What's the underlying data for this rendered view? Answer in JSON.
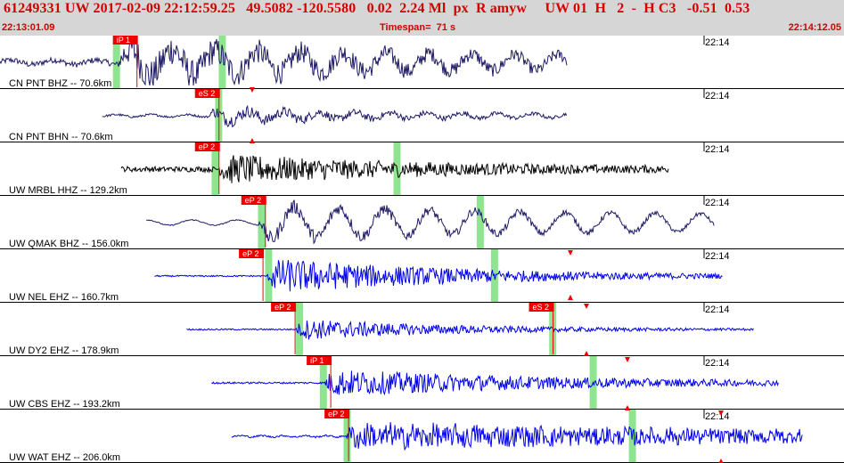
{
  "header": {
    "title": "61249331 UW 2017-02-09 22:12:59.25   49.5082 -120.5580   0.02  2.24 Ml  px  R amyw     UW 01  H   2  -  H C3   -0.51  0.53",
    "start_time": "22:13:01.09",
    "timespan": "Timespan=  71 s",
    "end_time": "22:14:12.05"
  },
  "colors": {
    "header_bg": "#d6d6d6",
    "header_text": "#d40000",
    "pick_box": "#ee0000",
    "window_band": "#8fe58f",
    "trace_dark": "#1e1a66",
    "trace_black": "#000000",
    "trace_blue": "#0000ee"
  },
  "channels": [
    {
      "label": "CN PNT BHZ -- 70.6km",
      "time_mark": "22:14",
      "color": "#1e1a66",
      "picks": [
        {
          "label": "iP 1",
          "t": 9.5
        }
      ],
      "bands": [
        9.5,
        18.4
      ],
      "trace": {
        "start": 0,
        "end": 47.7,
        "onset": 10.0,
        "amp": 1.0,
        "noise": 0.16,
        "decay": 0.045,
        "wave": 0.5,
        "period": 3.6,
        "hf": 0.9
      }
    },
    {
      "label": "CN PNT BHN -- 70.6km",
      "time_mark": "22:14",
      "color": "#1e1a66",
      "picks": [
        {
          "label": "eS 2",
          "t": 16.4
        }
      ],
      "bands": [
        18.1
      ],
      "trace": {
        "start": 8.6,
        "end": 47.7,
        "onset": 17.6,
        "amp": 0.85,
        "noise": 0.06,
        "decay": 0.06,
        "wave": 0.25,
        "period": 3.0,
        "hf": 0.45
      }
    },
    {
      "label": "UW MRBL HHZ -- 129.2km",
      "time_mark": "22:14",
      "color": "#000000",
      "picks": [
        {
          "label": "eP 2",
          "t": 16.4
        }
      ],
      "bands": [
        17.8,
        33.1
      ],
      "trace": {
        "start": 10.2,
        "end": 56.3,
        "onset": 18.4,
        "amp": 0.85,
        "noise": 0.15,
        "decay": 0.06,
        "wave": 0.05,
        "period": 2.0,
        "hf": 0.9
      }
    },
    {
      "label": "UW QMAK BHZ -- 156.0km",
      "time_mark": "22:14",
      "color": "#1e1a66",
      "picks": [
        {
          "label": "eP 2",
          "t": 20.3
        }
      ],
      "bands": [
        21.7,
        40.1
      ],
      "trace": {
        "start": 12.3,
        "end": 60.1,
        "onset": 21.8,
        "amp": 0.95,
        "noise": 0.03,
        "decay": 0.04,
        "wave": 0.6,
        "period": 3.8,
        "hf": 0.45
      }
    },
    {
      "label": "UW NEL EHZ -- 160.7km",
      "time_mark": "22:14",
      "color": "#0000ee",
      "picks": [
        {
          "label": "eP 2",
          "t": 20.1
        }
      ],
      "bands": [
        22.3,
        41.3
      ],
      "trace": {
        "start": 13.0,
        "end": 60.8,
        "onset": 22.5,
        "amp": 1.0,
        "noise": 0.04,
        "decay": 0.06,
        "wave": 0,
        "period": 1.0,
        "hf": 1.0
      }
    },
    {
      "label": "UW DY2 EHZ -- 178.9km",
      "time_mark": "22:14",
      "color": "#0000ee",
      "picks": [
        {
          "label": "eP 2",
          "t": 22.8
        },
        {
          "label": "eS 2",
          "t": 44.5
        }
      ],
      "bands": [
        24.9,
        46.2
      ],
      "trace": {
        "start": 15.7,
        "end": 63.4,
        "onset": 24.9,
        "amp": 0.6,
        "noise": 0.04,
        "decay": 0.08,
        "wave": 0,
        "period": 1.0,
        "hf": 1.0
      }
    },
    {
      "label": "UW CBS EHZ -- 193.2km",
      "time_mark": "22:14",
      "color": "#0000ee",
      "picks": [
        {
          "label": "iP 1",
          "t": 25.8
        }
      ],
      "bands": [
        26.9,
        49.6
      ],
      "trace": {
        "start": 17.8,
        "end": 65.5,
        "onset": 27.3,
        "amp": 0.75,
        "noise": 0.05,
        "decay": 0.05,
        "wave": 0,
        "period": 1.0,
        "hf": 1.0
      }
    },
    {
      "label": "UW WAT EHZ -- 206.0km",
      "time_mark": "22:14",
      "color": "#0000ee",
      "picks": [
        {
          "label": "eP 2",
          "t": 27.3
        }
      ],
      "bands": [
        28.9,
        52.9
      ],
      "trace": {
        "start": 19.5,
        "end": 67.5,
        "onset": 29.1,
        "amp": 0.7,
        "noise": 0.05,
        "decay": 0.02,
        "wave": 0.15,
        "period": 1.8,
        "hf": 1.0
      }
    }
  ]
}
